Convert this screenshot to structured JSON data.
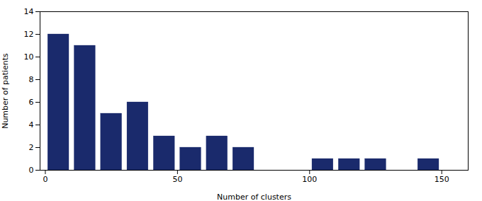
{
  "chart_data": {
    "type": "bar",
    "x": [
      5,
      15,
      25,
      35,
      45,
      55,
      65,
      75,
      105,
      115,
      125,
      145
    ],
    "values": [
      12,
      11,
      5,
      6,
      3,
      2,
      3,
      2,
      1,
      1,
      1,
      1
    ],
    "color": "#1a2a6c",
    "xlabel": "Number of clusters",
    "ylabel": "Number of patients",
    "xlim": [
      -2,
      160
    ],
    "xticks": [
      0,
      50,
      100,
      150
    ],
    "ylim": [
      0,
      14
    ],
    "yticks": [
      0,
      2,
      4,
      6,
      8,
      10,
      12,
      14
    ],
    "grid": false
  }
}
